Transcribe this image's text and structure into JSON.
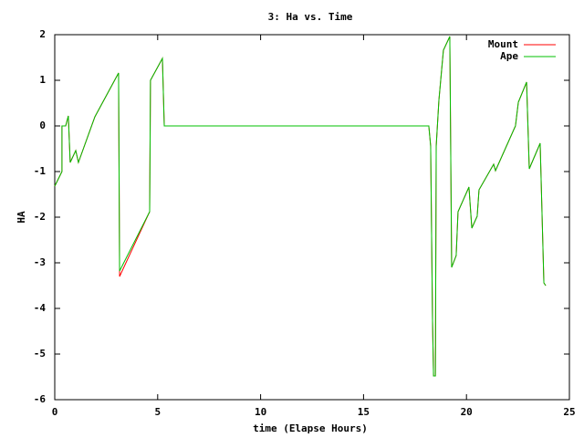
{
  "chart_data": {
    "type": "line",
    "title": "3: Ha vs. Time",
    "x_label": "time (Elapse Hours)",
    "y_label": "HA",
    "x": [
      0,
      0.35,
      0.35,
      0.53,
      0.66,
      0.75,
      1.02,
      1.15,
      1.95,
      3.1,
      3.15,
      4.61,
      4.65,
      5.23,
      5.32,
      18.17,
      18.26,
      18.35,
      18.4,
      18.49,
      18.53,
      18.66,
      18.88,
      19.19,
      19.28,
      19.5,
      19.59,
      20.12,
      20.26,
      20.52,
      20.61,
      21.32,
      21.41,
      22.38,
      22.52,
      22.92,
      23.05,
      23.58,
      23.76,
      23.85
    ],
    "series": [
      {
        "name": "Mount",
        "color": "#ff0000",
        "values": [
          -1.32,
          -1.0,
          0.0,
          0.0,
          0.22,
          -0.8,
          -0.54,
          -0.8,
          0.2,
          1.16,
          -3.3,
          -1.88,
          1.0,
          1.48,
          0.0,
          0.0,
          -0.44,
          -4.24,
          -5.48,
          -5.48,
          -0.44,
          0.56,
          1.66,
          1.96,
          -3.1,
          -2.84,
          -1.88,
          -1.34,
          -2.24,
          -1.98,
          -1.4,
          -0.84,
          -0.98,
          0.0,
          0.52,
          0.96,
          -0.94,
          -0.38,
          -3.44,
          -3.5
        ]
      },
      {
        "name": "Ape",
        "color": "#00c000",
        "values": [
          -1.32,
          -1.0,
          0.0,
          0.0,
          0.22,
          -0.8,
          -0.54,
          -0.8,
          0.2,
          1.16,
          -3.18,
          -1.88,
          1.0,
          1.48,
          0.0,
          0.0,
          -0.44,
          -4.24,
          -5.48,
          -5.48,
          -0.44,
          0.56,
          1.66,
          1.96,
          -3.1,
          -2.84,
          -1.88,
          -1.34,
          -2.24,
          -1.98,
          -1.4,
          -0.84,
          -0.98,
          0.0,
          0.52,
          0.96,
          -0.94,
          -0.38,
          -3.44,
          -3.5
        ]
      }
    ],
    "xlim": [
      0,
      25
    ],
    "xticks": [
      0,
      5,
      10,
      15,
      20,
      25
    ],
    "ylim": [
      -6,
      2
    ],
    "yticks": [
      -6,
      -5,
      -4,
      -3,
      -2,
      -1,
      0,
      1,
      2
    ],
    "grid": false,
    "legend": "top-right"
  }
}
